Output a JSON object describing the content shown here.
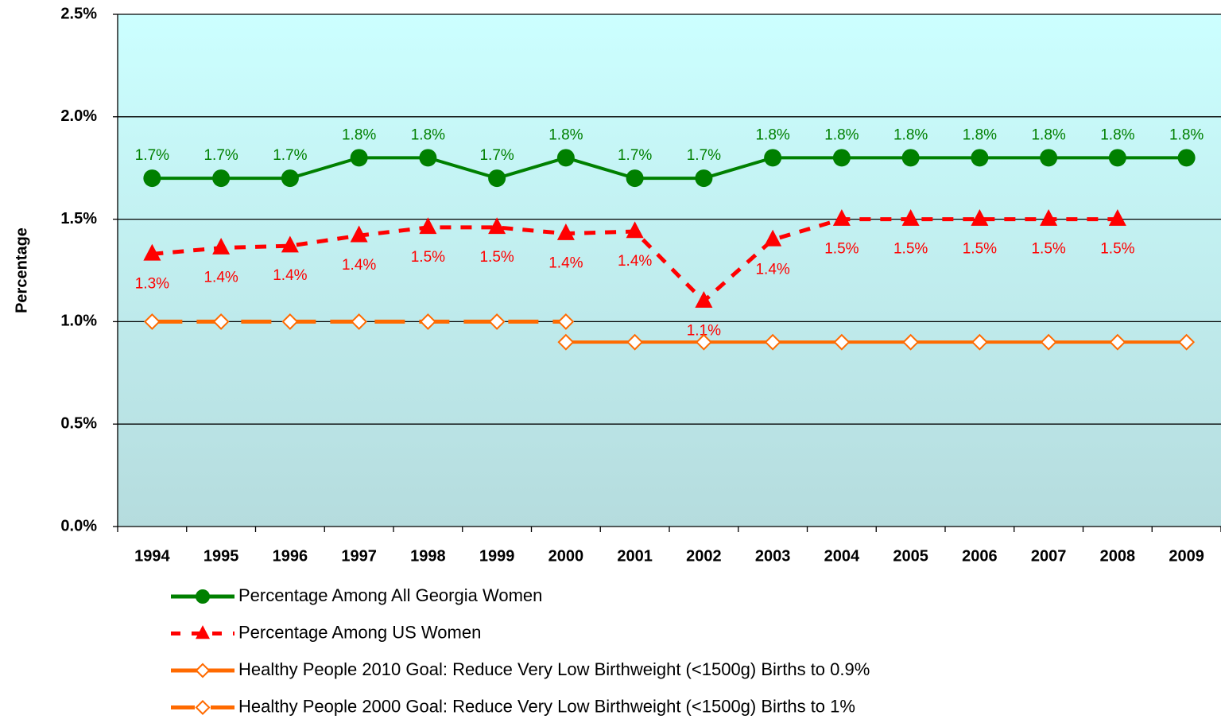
{
  "chart_data": {
    "type": "line",
    "y_label": "Percentage",
    "categories": [
      "1994",
      "1995",
      "1996",
      "1997",
      "1998",
      "1999",
      "2000",
      "2001",
      "2002",
      "2003",
      "2004",
      "2005",
      "2006",
      "2007",
      "2008",
      "2009"
    ],
    "ylim": [
      0,
      2.5
    ],
    "yticks": [
      {
        "value": 0,
        "label": "0.0%"
      },
      {
        "value": 0.5,
        "label": "0.5%"
      },
      {
        "value": 1,
        "label": "1.0%"
      },
      {
        "value": 1.5,
        "label": "1.5%"
      },
      {
        "value": 2,
        "label": "2.0%"
      },
      {
        "value": 2.5,
        "label": "2.5%"
      }
    ],
    "grid": true,
    "legend": "bottom",
    "series": [
      {
        "name": "Percentage Among All Georgia Women",
        "color": "#008000",
        "marker": "circle",
        "line_style": "solid",
        "values": [
          1.7,
          1.7,
          1.7,
          1.8,
          1.8,
          1.7,
          1.8,
          1.7,
          1.7,
          1.8,
          1.8,
          1.8,
          1.8,
          1.8,
          1.8,
          1.8
        ],
        "value_labels": [
          "1.7%",
          "1.7%",
          "1.7%",
          "1.8%",
          "1.8%",
          "1.7%",
          "1.8%",
          "1.7%",
          "1.7%",
          "1.8%",
          "1.8%",
          "1.8%",
          "1.8%",
          "1.8%",
          "1.8%",
          "1.8%"
        ]
      },
      {
        "name": "Percentage Among US Women",
        "color": "#ff0000",
        "marker": "triangle",
        "line_style": "dashed",
        "values": [
          1.33,
          1.36,
          1.37,
          1.42,
          1.46,
          1.46,
          1.43,
          1.44,
          1.1,
          1.4,
          1.5,
          1.5,
          1.5,
          1.5,
          1.5,
          null
        ],
        "value_labels": [
          "1.3%",
          "1.4%",
          "1.4%",
          "1.4%",
          "1.5%",
          "1.5%",
          "1.4%",
          "1.4%",
          "1.1%",
          "1.4%",
          "1.5%",
          "1.5%",
          "1.5%",
          "1.5%",
          "1.5%",
          null
        ]
      },
      {
        "name": "Healthy People 2010 Goal:  Reduce Very Low Birthweight (<1500g) Births to 0.9%",
        "color": "#ff6a00",
        "marker": "diamond",
        "line_style": "solid",
        "values": [
          null,
          null,
          null,
          null,
          null,
          null,
          0.9,
          0.9,
          0.9,
          0.9,
          0.9,
          0.9,
          0.9,
          0.9,
          0.9,
          0.9
        ]
      },
      {
        "name": "Healthy People 2000 Goal:  Reduce Very Low Birthweight (<1500g) Births to 1%",
        "color": "#ff6a00",
        "marker": "diamond",
        "line_style": "long-dashed",
        "values": [
          1,
          1,
          1,
          1,
          1,
          1,
          1,
          null,
          null,
          null,
          null,
          null,
          null,
          null,
          null,
          null
        ]
      }
    ]
  }
}
